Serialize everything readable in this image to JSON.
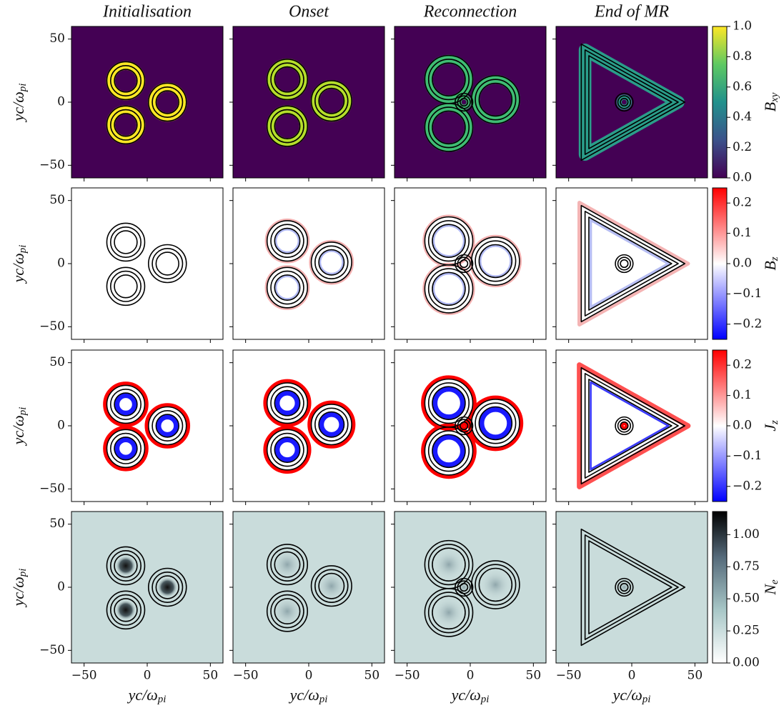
{
  "chart_data": {
    "type": "heatmap",
    "columns": [
      "Initialisation",
      "Onset",
      "Reconnection",
      "End of MR"
    ],
    "xlabel": {
      "base": "yc/ω",
      "sub": "pi"
    },
    "ylabel": {
      "base": "yc/ω",
      "sub": "pi"
    },
    "xlim": [
      -60,
      60
    ],
    "ylim": [
      -60,
      60
    ],
    "xticks": [
      {
        "value": -50,
        "label": "−50"
      },
      0,
      50
    ],
    "yticks": [
      {
        "value": -50,
        "label": "−50"
      },
      0,
      50
    ],
    "colorbars": [
      {
        "label": {
          "base": "B",
          "sub": "xy"
        },
        "colormap": "viridis",
        "clim": [
          0,
          1
        ],
        "ticks": [
          {
            "value": 0,
            "label": "0.0"
          },
          0.2,
          0.4,
          0.6,
          0.8,
          {
            "value": 1,
            "label": "1.0"
          }
        ]
      },
      {
        "label": {
          "base": "B",
          "sub": "z"
        },
        "colormap": "bwr",
        "clim": [
          -0.25,
          0.25
        ],
        "ticks": [
          {
            "value": -0.2,
            "label": "−0.2"
          },
          {
            "value": -0.1,
            "label": "−0.1"
          },
          {
            "value": 0,
            "label": "0.0"
          },
          0.1,
          0.2
        ]
      },
      {
        "label": {
          "base": "J",
          "sub": "z"
        },
        "colormap": "bwr",
        "clim": [
          -0.25,
          0.25
        ],
        "ticks": [
          {
            "value": -0.2,
            "label": "−0.2"
          },
          {
            "value": -0.1,
            "label": "−0.1"
          },
          {
            "value": 0,
            "label": "0.0"
          },
          0.1,
          0.2
        ]
      },
      {
        "label": {
          "base": "N",
          "sub": "e"
        },
        "colormap": "bone_r",
        "clim": [
          0,
          1.18
        ],
        "ticks": [
          {
            "value": 0,
            "label": "0.00"
          },
          0.25,
          {
            "value": 0.5,
            "label": "0.50"
          },
          0.75,
          {
            "value": 1,
            "label": "1.00"
          }
        ]
      }
    ]
  }
}
